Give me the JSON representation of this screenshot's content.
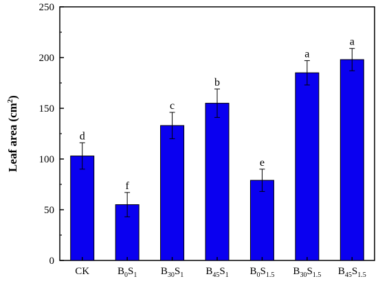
{
  "chart_data": {
    "type": "bar",
    "ylabel": "Leaf area (cm2)",
    "ylabel_parts": {
      "text": "Leaf area (cm",
      "sup": "2",
      "close": ")"
    },
    "ylim": [
      0,
      250
    ],
    "yticks": [
      0,
      50,
      100,
      150,
      200,
      250
    ],
    "grid": false,
    "bar_color": "#0A00F0",
    "categories": [
      "CK",
      "B0S1",
      "B30S1",
      "B45S1",
      "B0S1.5",
      "B30S1.5",
      "B45S1.5"
    ],
    "category_parts": [
      {
        "base": "CK",
        "sub1": "",
        "mid": "",
        "sub2": ""
      },
      {
        "base": "B",
        "sub1": "0",
        "mid": "S",
        "sub2": "1"
      },
      {
        "base": "B",
        "sub1": "30",
        "mid": "S",
        "sub2": "1"
      },
      {
        "base": "B",
        "sub1": "45",
        "mid": "S",
        "sub2": "1"
      },
      {
        "base": "B",
        "sub1": "0",
        "mid": "S",
        "sub2": "1.5"
      },
      {
        "base": "B",
        "sub1": "30",
        "mid": "S",
        "sub2": "1.5"
      },
      {
        "base": "B",
        "sub1": "45",
        "mid": "S",
        "sub2": "1.5"
      }
    ],
    "values": [
      103,
      55,
      133,
      155,
      79,
      185,
      198
    ],
    "errors": [
      13,
      12,
      13,
      14,
      11,
      12,
      11
    ],
    "significance": [
      "d",
      "f",
      "c",
      "b",
      "e",
      "a",
      "a"
    ]
  }
}
